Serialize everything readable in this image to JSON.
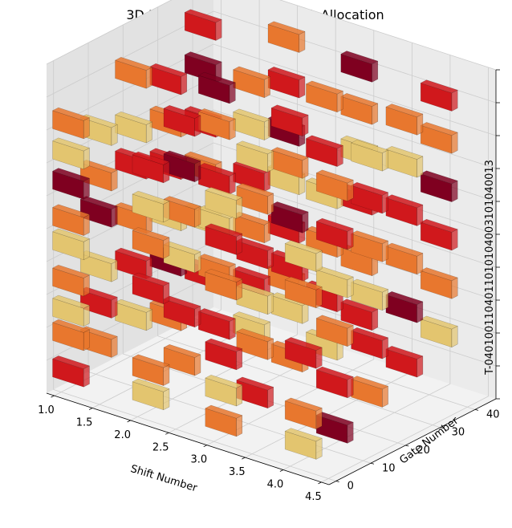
{
  "chart_data": {
    "type": "bar3d",
    "title": "3D Bar Plot of Optimized Task Allocation",
    "xlabel": "Shift Number",
    "ylabel": "Gate Number",
    "zlabel": "",
    "xlim": [
      0.9,
      4.6
    ],
    "ylim": [
      -2,
      46
    ],
    "x_ticks": [
      "1.0",
      "1.5",
      "2.0",
      "2.5",
      "3.0",
      "3.5",
      "4.0",
      "4.5"
    ],
    "y_ticks": [
      "0",
      "10",
      "20",
      "30",
      "40"
    ],
    "z_tick_text": "T-0401001104011010104003101040013",
    "palette": {
      "dark_red": "#7f0020",
      "red": "#d0181c",
      "orange": "#e8772e",
      "yellow": "#e3c56f",
      "pane_back": "#ebebeb",
      "pane_side": "#e2e2e2",
      "pane_floor": "#f2f2f2",
      "grid": "#cccccc"
    },
    "columns": [
      {
        "shift": 1,
        "gate": 2,
        "tasks": [
          [
            "red",
            0.0
          ],
          [
            "orange",
            0.12
          ],
          [
            "yellow",
            0.2
          ],
          [
            "orange",
            0.3
          ],
          [
            "yellow",
            0.42
          ],
          [
            "orange",
            0.5
          ],
          [
            "dark_red",
            0.62
          ],
          [
            "yellow",
            0.72
          ],
          [
            "orange",
            0.82
          ]
        ]
      },
      {
        "shift": 1,
        "gate": 10,
        "tasks": [
          [
            "orange",
            0.05
          ],
          [
            "red",
            0.18
          ],
          [
            "yellow",
            0.3
          ],
          [
            "dark_red",
            0.48
          ],
          [
            "orange",
            0.6
          ],
          [
            "yellow",
            0.75
          ]
        ]
      },
      {
        "shift": 1,
        "gate": 20,
        "tasks": [
          [
            "yellow",
            0.08
          ],
          [
            "red",
            0.25
          ],
          [
            "orange",
            0.4
          ],
          [
            "red",
            0.58
          ],
          [
            "yellow",
            0.7
          ],
          [
            "orange",
            0.88
          ]
        ]
      },
      {
        "shift": 1,
        "gate": 30,
        "tasks": [
          [
            "orange",
            0.02
          ],
          [
            "dark_red",
            0.2
          ],
          [
            "yellow",
            0.35
          ],
          [
            "red",
            0.52
          ],
          [
            "orange",
            0.66
          ],
          [
            "red",
            0.8
          ]
        ]
      },
      {
        "shift": 1,
        "gate": 40,
        "tasks": [
          [
            "red",
            0.1
          ],
          [
            "yellow",
            0.28
          ],
          [
            "orange",
            0.45
          ],
          [
            "red",
            0.6
          ],
          [
            "dark_red",
            0.78
          ],
          [
            "red",
            0.92
          ]
        ]
      },
      {
        "shift": 2,
        "gate": 3,
        "tasks": [
          [
            "yellow",
            0.0
          ],
          [
            "orange",
            0.08
          ],
          [
            "red",
            0.35
          ],
          [
            "orange",
            0.5
          ],
          [
            "yellow",
            0.62
          ],
          [
            "red",
            0.75
          ]
        ]
      },
      {
        "shift": 2,
        "gate": 12,
        "tasks": [
          [
            "orange",
            0.06
          ],
          [
            "red",
            0.22
          ],
          [
            "yellow",
            0.4
          ],
          [
            "orange",
            0.55
          ],
          [
            "dark_red",
            0.7
          ],
          [
            "red",
            0.85
          ]
        ]
      },
      {
        "shift": 2,
        "gate": 22,
        "tasks": [
          [
            "red",
            0.12
          ],
          [
            "orange",
            0.3
          ],
          [
            "yellow",
            0.46
          ],
          [
            "red",
            0.6
          ],
          [
            "orange",
            0.78
          ],
          [
            "dark_red",
            0.9
          ]
        ]
      },
      {
        "shift": 2,
        "gate": 32,
        "tasks": [
          [
            "yellow",
            0.05
          ],
          [
            "red",
            0.2
          ],
          [
            "orange",
            0.38
          ],
          [
            "red",
            0.55
          ],
          [
            "yellow",
            0.72
          ],
          [
            "orange",
            0.86
          ]
        ]
      },
      {
        "shift": 2,
        "gate": 42,
        "tasks": [
          [
            "orange",
            0.15
          ],
          [
            "red",
            0.32
          ],
          [
            "yellow",
            0.48
          ],
          [
            "dark_red",
            0.64
          ],
          [
            "red",
            0.8
          ],
          [
            "orange",
            0.95
          ]
        ]
      },
      {
        "shift": 3,
        "gate": 2,
        "tasks": [
          [
            "orange",
            0.0
          ],
          [
            "yellow",
            0.1
          ],
          [
            "red",
            0.22
          ],
          [
            "orange",
            0.45
          ],
          [
            "red",
            0.6
          ],
          [
            "yellow",
            0.72
          ]
        ]
      },
      {
        "shift": 3,
        "gate": 11,
        "tasks": [
          [
            "red",
            0.04
          ],
          [
            "orange",
            0.2
          ],
          [
            "yellow",
            0.35
          ],
          [
            "red",
            0.5
          ],
          [
            "orange",
            0.68
          ],
          [
            "yellow",
            0.82
          ]
        ]
      },
      {
        "shift": 3,
        "gate": 21,
        "tasks": [
          [
            "orange",
            0.1
          ],
          [
            "yellow",
            0.26
          ],
          [
            "red",
            0.4
          ],
          [
            "dark_red",
            0.56
          ],
          [
            "orange",
            0.74
          ],
          [
            "red",
            0.88
          ]
        ]
      },
      {
        "shift": 3,
        "gate": 31,
        "tasks": [
          [
            "yellow",
            0.08
          ],
          [
            "red",
            0.24
          ],
          [
            "orange",
            0.42
          ],
          [
            "yellow",
            0.58
          ],
          [
            "red",
            0.72
          ],
          [
            "orange",
            0.9
          ]
        ]
      },
      {
        "shift": 3,
        "gate": 41,
        "tasks": [
          [
            "red",
            0.12
          ],
          [
            "orange",
            0.3
          ],
          [
            "red",
            0.5
          ],
          [
            "yellow",
            0.66
          ],
          [
            "orange",
            0.8
          ],
          [
            "dark_red",
            0.94
          ]
        ]
      },
      {
        "shift": 4,
        "gate": 3,
        "tasks": [
          [
            "yellow",
            0.0
          ],
          [
            "orange",
            0.1
          ],
          [
            "red",
            0.3
          ],
          [
            "orange",
            0.5
          ],
          [
            "yellow",
            0.62
          ]
        ]
      },
      {
        "shift": 4,
        "gate": 12,
        "tasks": [
          [
            "dark_red",
            0.0
          ],
          [
            "red",
            0.15
          ],
          [
            "orange",
            0.32
          ],
          [
            "yellow",
            0.48
          ],
          [
            "red",
            0.64
          ],
          [
            "orange",
            0.8
          ]
        ]
      },
      {
        "shift": 4,
        "gate": 22,
        "tasks": [
          [
            "orange",
            0.06
          ],
          [
            "red",
            0.22
          ],
          [
            "yellow",
            0.38
          ],
          [
            "orange",
            0.54
          ],
          [
            "red",
            0.7
          ],
          [
            "yellow",
            0.84
          ]
        ]
      },
      {
        "shift": 4,
        "gate": 32,
        "tasks": [
          [
            "red",
            0.1
          ],
          [
            "dark_red",
            0.28
          ],
          [
            "orange",
            0.44
          ],
          [
            "red",
            0.6
          ],
          [
            "yellow",
            0.76
          ],
          [
            "orange",
            0.9
          ]
        ]
      },
      {
        "shift": 4,
        "gate": 42,
        "tasks": [
          [
            "yellow",
            0.14
          ],
          [
            "orange",
            0.3
          ],
          [
            "red",
            0.46
          ],
          [
            "dark_red",
            0.62
          ],
          [
            "orange",
            0.78
          ],
          [
            "red",
            0.92
          ]
        ]
      }
    ]
  }
}
